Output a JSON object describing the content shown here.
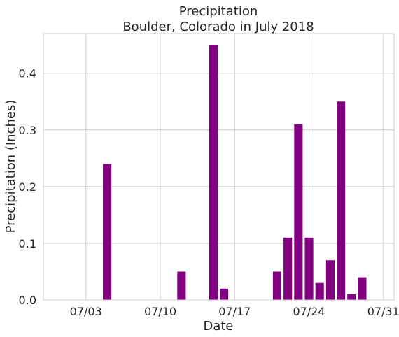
{
  "chart_data": {
    "type": "bar",
    "title": "Precipitation",
    "subtitle": "Boulder, Colorado in July 2018",
    "xlabel": "Date",
    "ylabel": "Precipitation (Inches)",
    "bar_color": "#800080",
    "grid": true,
    "x_tick_labels": [
      {
        "date": "2018-07-03",
        "label": "07/03"
      },
      {
        "date": "2018-07-10",
        "label": "07/10"
      },
      {
        "date": "2018-07-17",
        "label": "07/17"
      },
      {
        "date": "2018-07-24",
        "label": "07/24"
      },
      {
        "date": "2018-07-31",
        "label": "07/31"
      }
    ],
    "y_ticks": [
      "0.0",
      "0.1",
      "0.2",
      "0.3",
      "0.4"
    ],
    "ylim": [
      0,
      0.47
    ],
    "xlim": [
      "2018-06-29",
      "2018-08-01"
    ],
    "series": [
      {
        "points": [
          {
            "x": "2018-07-05",
            "y": 0.24
          },
          {
            "x": "2018-07-12",
            "y": 0.05
          },
          {
            "x": "2018-07-15",
            "y": 0.45
          },
          {
            "x": "2018-07-16",
            "y": 0.02
          },
          {
            "x": "2018-07-21",
            "y": 0.05
          },
          {
            "x": "2018-07-22",
            "y": 0.11
          },
          {
            "x": "2018-07-23",
            "y": 0.31
          },
          {
            "x": "2018-07-24",
            "y": 0.11
          },
          {
            "x": "2018-07-25",
            "y": 0.03
          },
          {
            "x": "2018-07-26",
            "y": 0.07
          },
          {
            "x": "2018-07-27",
            "y": 0.35
          },
          {
            "x": "2018-07-28",
            "y": 0.01
          },
          {
            "x": "2018-07-29",
            "y": 0.04
          }
        ]
      }
    ]
  }
}
